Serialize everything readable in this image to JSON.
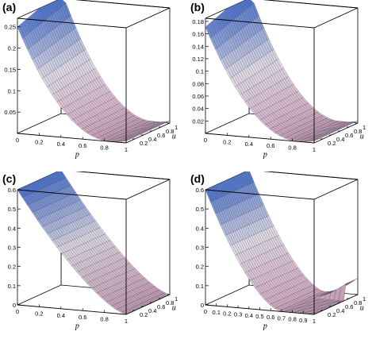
{
  "figure": {
    "panels": [
      {
        "label": "(a)"
      },
      {
        "label": "(b)"
      },
      {
        "label": "(c)"
      },
      {
        "label": "(d)"
      }
    ]
  },
  "chart_data": [
    {
      "type": "surface3d",
      "panel": "(a)",
      "xlabel": "p",
      "ylabel": "u",
      "x_ticks": [
        "0",
        "0.2",
        "0.4",
        "0.6",
        "0.8",
        "1"
      ],
      "y_ticks": [
        "0.2",
        "0.4",
        "0.6",
        "0.8",
        "1"
      ],
      "z_ticks": [
        "0.05",
        "0.1",
        "0.15",
        "0.2",
        "0.25"
      ],
      "xlim": [
        0,
        1
      ],
      "ylim": [
        0,
        1
      ],
      "zlim": [
        0,
        0.27
      ],
      "shape": {
        "amplitude": 0.27,
        "exponent": 2.0,
        "valley_center": 0.85,
        "u_coupling": 0.15,
        "floor_u": 0.0
      },
      "grid": true
    },
    {
      "type": "surface3d",
      "panel": "(b)",
      "xlabel": "p",
      "ylabel": "u",
      "x_ticks": [
        "0",
        "0.2",
        "0.4",
        "0.6",
        "0.8",
        "1"
      ],
      "y_ticks": [
        "0.2",
        "0.4",
        "0.6",
        "0.8",
        "1"
      ],
      "z_ticks": [
        "0.02",
        "0.04",
        "0.06",
        "0.08",
        "0.1",
        "0.12",
        "0.14",
        "0.16",
        "0.18"
      ],
      "xlim": [
        0,
        1
      ],
      "ylim": [
        0,
        1
      ],
      "zlim": [
        0,
        0.185
      ],
      "shape": {
        "amplitude": 0.185,
        "exponent": 2.0,
        "valley_center": 0.85,
        "u_coupling": 0.15,
        "floor_u": 0.0
      },
      "grid": true
    },
    {
      "type": "surface3d",
      "panel": "(c)",
      "xlabel": "p",
      "ylabel": "u",
      "x_ticks": [
        "0",
        "0.2",
        "0.4",
        "0.6",
        "0.8",
        "1"
      ],
      "y_ticks": [
        "0.2",
        "0.4",
        "0.6",
        "0.8",
        "1"
      ],
      "z_ticks": [
        "0",
        "0.1",
        "0.2",
        "0.3",
        "0.4",
        "0.5",
        "0.6"
      ],
      "xlim": [
        0,
        1
      ],
      "ylim": [
        0,
        1
      ],
      "zlim": [
        0,
        0.6
      ],
      "shape": {
        "amplitude": 0.6,
        "exponent": 1.4,
        "valley_center": 1.0,
        "u_coupling": 0.0,
        "floor_u": 0.0
      },
      "grid": true
    },
    {
      "type": "surface3d",
      "panel": "(d)",
      "xlabel": "p",
      "ylabel": "u",
      "x_ticks": [
        "0",
        "0.1",
        "0.2",
        "0.3",
        "0.4",
        "0.5",
        "0.6",
        "0.7",
        "0.8",
        "0.9",
        "1"
      ],
      "y_ticks": [
        "0.2",
        "0.4",
        "0.6",
        "0.8",
        "1"
      ],
      "z_ticks": [
        "0",
        "0.1",
        "0.2",
        "0.3",
        "0.4",
        "0.5",
        "0.6"
      ],
      "xlim": [
        0,
        1
      ],
      "ylim": [
        0,
        1
      ],
      "zlim": [
        0,
        0.6
      ],
      "shape": {
        "amplitude": 0.6,
        "exponent": 1.6,
        "valley_center": 0.7,
        "u_coupling": 0.0,
        "floor_u": 0.7
      },
      "grid": true
    }
  ]
}
